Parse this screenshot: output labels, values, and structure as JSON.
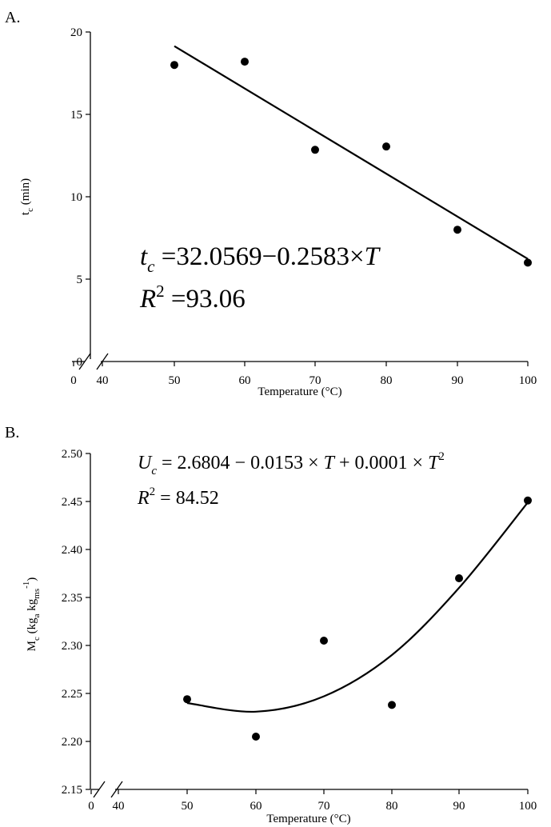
{
  "chart_data": [
    {
      "type": "scatter",
      "panel_label": "A.",
      "x": [
        50,
        60,
        70,
        80,
        90,
        100
      ],
      "y": [
        18.0,
        18.2,
        12.85,
        13.05,
        8.0,
        6.0
      ],
      "fit": {
        "kind": "linear",
        "intercept": 32.0569,
        "slope": -0.2583,
        "x_range": [
          50,
          100
        ]
      },
      "xlabel": "Temperature (°C)",
      "ylabel": {
        "main": "t",
        "sub": "c",
        "tail": " (min)"
      },
      "xticks": [
        0,
        40,
        50,
        60,
        70,
        80,
        90,
        100
      ],
      "xtick_labels": [
        "0",
        "40",
        "50",
        "60",
        "70",
        "80",
        "90",
        "100"
      ],
      "yticks": [
        0,
        5,
        10,
        15,
        20
      ],
      "ytick_labels": [
        "0",
        "5",
        "10",
        "15",
        "20"
      ],
      "ylim": [
        0,
        20
      ],
      "x_axis_break": true,
      "grid": false,
      "equation": {
        "var": "t",
        "var_sub": "c",
        "eq": " =",
        "rhs_num": "32.0569−0.2583×",
        "rhs_var": "T",
        "r2_var": "R",
        "r2_sup": "2",
        "r2_rest": " =93.06"
      }
    },
    {
      "type": "scatter",
      "panel_label": "B.",
      "x": [
        50,
        60,
        70,
        80,
        90,
        100
      ],
      "y": [
        2.244,
        2.205,
        2.305,
        2.238,
        2.37,
        2.451
      ],
      "fit": {
        "kind": "quadratic",
        "curve_y": [
          2.24,
          2.231,
          2.247,
          2.29,
          2.36,
          2.449
        ],
        "x_range": [
          50,
          100
        ]
      },
      "xlabel": "Temperature (°C)",
      "ylabel": {
        "main": "M",
        "sub": "c",
        "mid": " (kg",
        "sub2": "a",
        "mid2": " kg",
        "sub3": "ms",
        "sup3": "-1",
        "tail": ")"
      },
      "xticks": [
        0,
        40,
        50,
        60,
        70,
        80,
        90,
        100
      ],
      "xtick_labels": [
        "0",
        "40",
        "50",
        "60",
        "70",
        "80",
        "90",
        "100"
      ],
      "yticks": [
        2.15,
        2.2,
        2.25,
        2.3,
        2.35,
        2.4,
        2.45,
        2.5
      ],
      "ytick_labels": [
        "2.15",
        "2.20",
        "2.25",
        "2.30",
        "2.35",
        "2.40",
        "2.45",
        "2.50"
      ],
      "ylim": [
        2.15,
        2.5
      ],
      "x_axis_break": true,
      "grid": false,
      "equation": {
        "var": "U",
        "var_sub": "c",
        "rhs_a": " = 2.6804 − 0.0153 × ",
        "rhs_var1": "T",
        "rhs_b": " + 0.0001 × ",
        "rhs_var2": "T",
        "rhs_sup": "2",
        "r2_var": "R",
        "r2_sup": "2",
        "r2_rest": " = 84.52"
      }
    }
  ]
}
